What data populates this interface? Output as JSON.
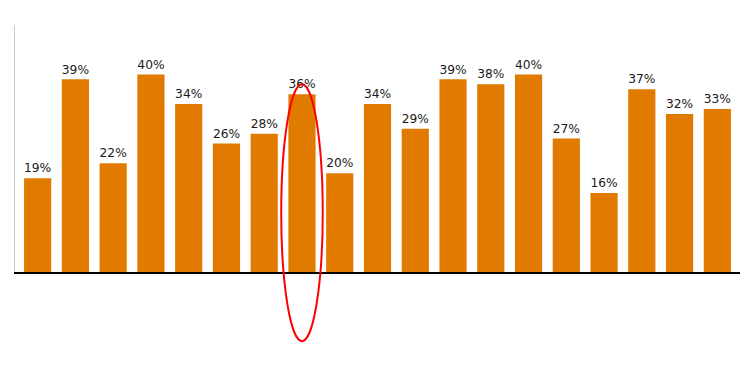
{
  "chart_data": {
    "type": "bar",
    "categories": [
      null,
      null,
      null,
      null,
      null,
      null,
      null,
      null,
      null,
      null,
      null,
      null,
      null,
      null,
      null,
      null,
      null,
      null,
      null
    ],
    "values": [
      19,
      39,
      22,
      40,
      34,
      26,
      28,
      36,
      20,
      34,
      29,
      39,
      38,
      40,
      27,
      16,
      37,
      32,
      33
    ],
    "value_labels": [
      "19%",
      "39%",
      "22%",
      "40%",
      "34%",
      "26%",
      "28%",
      "36%",
      "20%",
      "34%",
      "29%",
      "39%",
      "38%",
      "40%",
      "27%",
      "16%",
      "37%",
      "32%",
      "33%"
    ],
    "color": "#E07B00",
    "ylim": [
      0,
      50
    ],
    "data_labels": true,
    "tick_labels": false,
    "grid": false
  }
}
